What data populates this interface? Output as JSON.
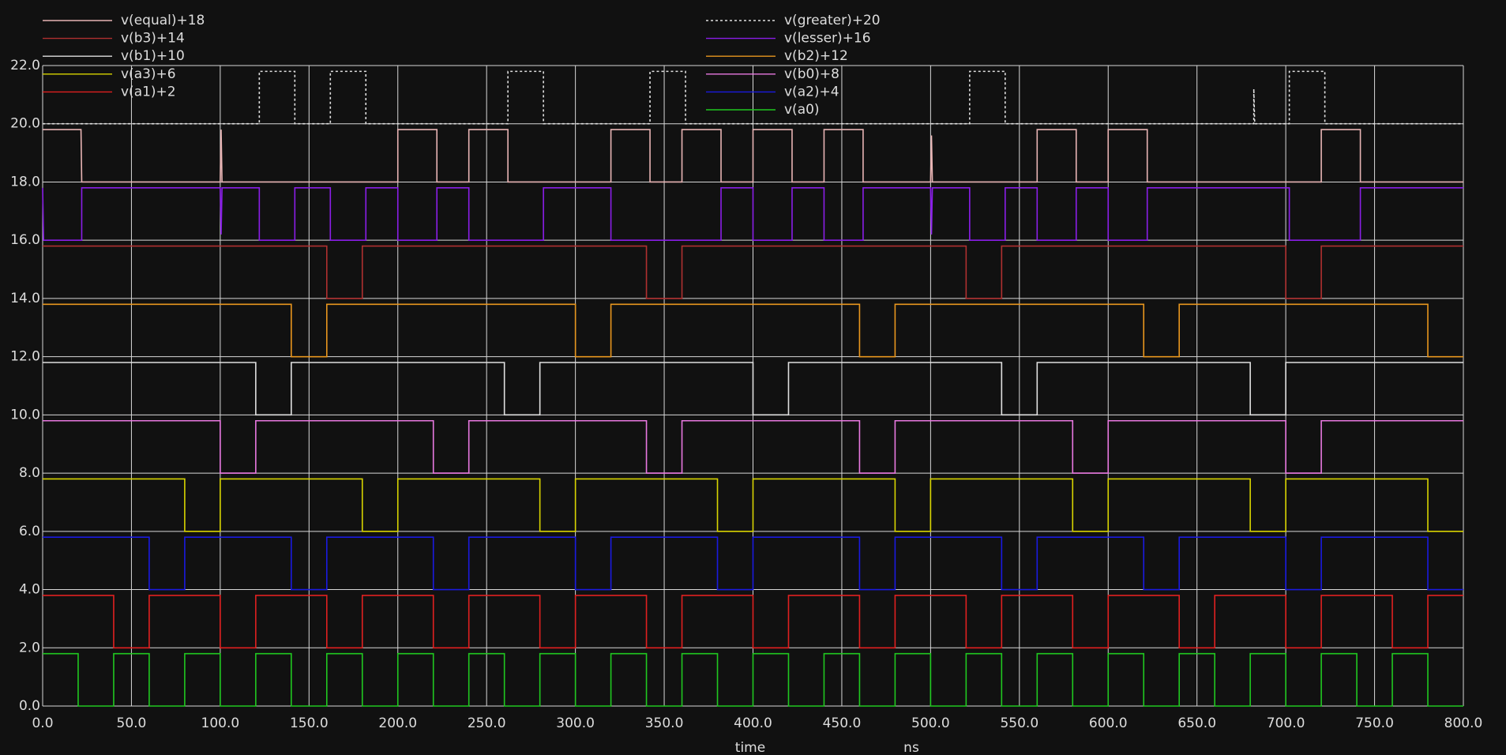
{
  "chart_data": {
    "type": "line",
    "xlabel": "time",
    "xunit": "ns",
    "grid": true,
    "xlim": [
      0,
      800
    ],
    "ylim": [
      0,
      22
    ],
    "xticks": [
      {
        "value": 0,
        "label": "0.0"
      },
      {
        "value": 50,
        "label": "50.0"
      },
      {
        "value": 100,
        "label": "100.0"
      },
      {
        "value": 150,
        "label": "150.0"
      },
      {
        "value": 200,
        "label": "200.0"
      },
      {
        "value": 250,
        "label": "250.0"
      },
      {
        "value": 300,
        "label": "300.0"
      },
      {
        "value": 350,
        "label": "350.0"
      },
      {
        "value": 400,
        "label": "400.0"
      },
      {
        "value": 450,
        "label": "450.0"
      },
      {
        "value": 500,
        "label": "500.0"
      },
      {
        "value": 550,
        "label": "550.0"
      },
      {
        "value": 600,
        "label": "600.0"
      },
      {
        "value": 650,
        "label": "650.0"
      },
      {
        "value": 700,
        "label": "700.0"
      },
      {
        "value": 750,
        "label": "750.0"
      },
      {
        "value": 800,
        "label": "800.0"
      }
    ],
    "yticks": [
      {
        "value": 0,
        "label": "0.0"
      },
      {
        "value": 2,
        "label": "2.0"
      },
      {
        "value": 4,
        "label": "4.0"
      },
      {
        "value": 6,
        "label": "6.0"
      },
      {
        "value": 8,
        "label": "8.0"
      },
      {
        "value": 10,
        "label": "10.0"
      },
      {
        "value": 12,
        "label": "12.0"
      },
      {
        "value": 14,
        "label": "14.0"
      },
      {
        "value": 16,
        "label": "16.0"
      },
      {
        "value": 18,
        "label": "18.0"
      },
      {
        "value": 20,
        "label": "20.0"
      },
      {
        "value": 22,
        "label": "22.0"
      }
    ],
    "series": [
      {
        "name": "v(equal)+18",
        "color": "#e8b4b4",
        "x": [
          0,
          21.6,
          22,
          100,
          100.5,
          101,
          200,
          200,
          222,
          222,
          240,
          240,
          262,
          262,
          320,
          320,
          342,
          342,
          360,
          360,
          382,
          382,
          400,
          400,
          422,
          422,
          440,
          440,
          462,
          462,
          500,
          500.5,
          501,
          560,
          560,
          582,
          582,
          600,
          600,
          622,
          622,
          720,
          720,
          742,
          742,
          800
        ],
        "values": [
          19.8,
          19.8,
          18,
          18,
          19.8,
          18,
          18,
          19.8,
          19.8,
          18,
          18,
          19.8,
          19.8,
          18,
          18,
          19.8,
          19.8,
          18,
          18,
          19.8,
          19.8,
          18,
          18,
          19.8,
          19.8,
          18,
          18,
          19.8,
          19.8,
          18,
          18,
          19.6,
          18,
          18,
          19.8,
          19.8,
          18,
          18,
          19.8,
          19.8,
          18,
          18,
          19.8,
          19.8,
          18,
          18
        ]
      },
      {
        "name": "v(greater)+20",
        "color": "#e0e0e0",
        "linestyle": "dashed",
        "x": [
          0,
          122,
          122,
          142,
          142,
          162,
          162,
          182,
          182,
          262,
          262,
          282,
          282,
          342,
          342,
          362,
          362,
          522,
          522,
          542,
          542,
          682,
          682,
          682.5,
          702,
          702,
          722,
          722,
          800
        ],
        "values": [
          20,
          20,
          21.8,
          21.8,
          20,
          20,
          21.8,
          21.8,
          20,
          20,
          21.8,
          21.8,
          20,
          20,
          21.8,
          21.8,
          20,
          20,
          21.8,
          21.8,
          20,
          20,
          21.2,
          20,
          20,
          21.8,
          21.8,
          20,
          20
        ]
      },
      {
        "name": "v(b3)+14",
        "color": "#b03030",
        "x": [
          0,
          160,
          160,
          180,
          180,
          340,
          340,
          360,
          360,
          520,
          520,
          540,
          540,
          700,
          700,
          720,
          720,
          800
        ],
        "values": [
          15.8,
          15.8,
          14,
          14,
          15.8,
          15.8,
          14,
          14,
          15.8,
          15.8,
          14,
          14,
          15.8,
          15.8,
          14,
          14,
          15.8,
          15.8
        ]
      },
      {
        "name": "v(lesser)+16",
        "color": "#8a1ee8",
        "x": [
          0,
          0.5,
          22,
          22,
          100,
          100.5,
          101,
          122,
          122,
          142,
          142,
          162,
          162,
          182,
          182,
          200,
          200,
          222,
          222,
          240,
          240,
          282,
          282,
          320,
          320,
          382,
          382,
          400,
          400,
          422,
          422,
          440,
          440,
          462,
          462,
          500,
          500.5,
          501,
          522,
          522,
          542,
          542,
          560,
          560,
          582,
          582,
          600,
          600,
          622,
          622,
          702,
          702,
          742,
          742,
          800
        ],
        "values": [
          17.8,
          16,
          16,
          17.8,
          17.8,
          16.2,
          17.8,
          17.8,
          16,
          16,
          17.8,
          17.8,
          16,
          16,
          17.8,
          17.8,
          16,
          16,
          17.8,
          17.8,
          16,
          16,
          17.8,
          17.8,
          16,
          16,
          17.8,
          17.8,
          16,
          16,
          17.8,
          17.8,
          16,
          16,
          17.8,
          17.8,
          16.2,
          17.8,
          17.8,
          16,
          16,
          17.8,
          17.8,
          16,
          16,
          17.8,
          17.8,
          16,
          16,
          17.8,
          17.8,
          16,
          16,
          17.8,
          17.8
        ]
      },
      {
        "name": "v(b1)+10",
        "color": "#e0e0e0",
        "x": [
          0,
          120,
          120,
          140,
          140,
          260,
          260,
          280,
          280,
          400,
          400,
          420,
          420,
          540,
          540,
          560,
          560,
          680,
          680,
          700,
          700,
          800
        ],
        "values": [
          11.8,
          11.8,
          10,
          10,
          11.8,
          11.8,
          10,
          10,
          11.8,
          11.8,
          10,
          10,
          11.8,
          11.8,
          10,
          10,
          11.8,
          11.8,
          10,
          10,
          11.8,
          11.8
        ]
      },
      {
        "name": "v(b2)+12",
        "color": "#e8961e",
        "x": [
          0,
          140,
          140,
          160,
          160,
          300,
          300,
          320,
          320,
          460,
          460,
          480,
          480,
          620,
          620,
          640,
          640,
          780,
          780,
          800
        ],
        "values": [
          13.8,
          13.8,
          12,
          12,
          13.8,
          13.8,
          12,
          12,
          13.8,
          13.8,
          12,
          12,
          13.8,
          13.8,
          12,
          12,
          13.8,
          13.8,
          12,
          12
        ]
      },
      {
        "name": "v(a3)+6",
        "color": "#d8d400",
        "x": [
          0,
          80,
          80,
          100,
          100,
          180,
          180,
          200,
          200,
          280,
          280,
          300,
          300,
          380,
          380,
          400,
          400,
          480,
          480,
          500,
          500,
          580,
          580,
          600,
          600,
          680,
          680,
          700,
          700,
          780,
          780,
          800
        ],
        "values": [
          7.8,
          7.8,
          6,
          6,
          7.8,
          7.8,
          6,
          6,
          7.8,
          7.8,
          6,
          6,
          7.8,
          7.8,
          6,
          6,
          7.8,
          7.8,
          6,
          6,
          7.8,
          7.8,
          6,
          6,
          7.8,
          7.8,
          6,
          6,
          7.8,
          7.8,
          6,
          6
        ]
      },
      {
        "name": "v(b0)+8",
        "color": "#e878e0",
        "x": [
          0,
          100,
          100,
          120,
          120,
          220,
          220,
          240,
          240,
          340,
          340,
          360,
          360,
          460,
          460,
          480,
          480,
          580,
          580,
          600,
          600,
          700,
          700,
          720,
          720,
          800
        ],
        "values": [
          9.8,
          9.8,
          8,
          8,
          9.8,
          9.8,
          8,
          8,
          9.8,
          9.8,
          8,
          8,
          9.8,
          9.8,
          8,
          8,
          9.8,
          9.8,
          8,
          8,
          9.8,
          9.8,
          8,
          8,
          9.8,
          9.8
        ]
      },
      {
        "name": "v(a1)+2",
        "color": "#e02020",
        "x": [
          0,
          40,
          40,
          60,
          60,
          100,
          100,
          120,
          120,
          160,
          160,
          180,
          180,
          220,
          220,
          240,
          240,
          280,
          280,
          300,
          300,
          340,
          340,
          360,
          360,
          400,
          400,
          420,
          420,
          460,
          460,
          480,
          480,
          520,
          520,
          540,
          540,
          580,
          580,
          600,
          600,
          640,
          640,
          660,
          660,
          700,
          700,
          720,
          720,
          760,
          760,
          780,
          780,
          800
        ],
        "values": [
          3.8,
          3.8,
          2,
          2,
          3.8,
          3.8,
          2,
          2,
          3.8,
          3.8,
          2,
          2,
          3.8,
          3.8,
          2,
          2,
          3.8,
          3.8,
          2,
          2,
          3.8,
          3.8,
          2,
          2,
          3.8,
          3.8,
          2,
          2,
          3.8,
          3.8,
          2,
          2,
          3.8,
          3.8,
          2,
          2,
          3.8,
          3.8,
          2,
          2,
          3.8,
          3.8,
          2,
          2,
          3.8,
          3.8,
          2,
          2,
          3.8,
          3.8,
          2,
          2,
          3.8,
          3.8
        ]
      },
      {
        "name": "v(a2)+4",
        "color": "#1a1ae0",
        "x": [
          0,
          60,
          60,
          80,
          80,
          140,
          140,
          160,
          160,
          220,
          220,
          240,
          240,
          300,
          300,
          320,
          320,
          380,
          380,
          400,
          400,
          460,
          460,
          480,
          480,
          540,
          540,
          560,
          560,
          620,
          620,
          640,
          640,
          700,
          700,
          720,
          720,
          780,
          780,
          800
        ],
        "values": [
          5.8,
          5.8,
          4,
          4,
          5.8,
          5.8,
          4,
          4,
          5.8,
          5.8,
          4,
          4,
          5.8,
          5.8,
          4,
          4,
          5.8,
          5.8,
          4,
          4,
          5.8,
          5.8,
          4,
          4,
          5.8,
          5.8,
          4,
          4,
          5.8,
          5.8,
          4,
          4,
          5.8,
          5.8,
          4,
          4,
          5.8,
          5.8,
          4,
          4
        ]
      },
      {
        "name": "v(a0)",
        "color": "#20c820",
        "x": [
          0,
          20,
          20,
          40,
          40,
          60,
          60,
          80,
          80,
          100,
          100,
          120,
          120,
          140,
          140,
          160,
          160,
          180,
          180,
          200,
          200,
          220,
          220,
          240,
          240,
          260,
          260,
          280,
          280,
          300,
          300,
          320,
          320,
          340,
          340,
          360,
          360,
          380,
          380,
          400,
          400,
          420,
          420,
          440,
          440,
          460,
          460,
          480,
          480,
          500,
          500,
          520,
          520,
          540,
          540,
          560,
          560,
          580,
          580,
          600,
          600,
          620,
          620,
          640,
          640,
          660,
          660,
          680,
          680,
          700,
          700,
          720,
          720,
          740,
          740,
          760,
          760,
          780,
          780,
          800
        ],
        "values": [
          1.8,
          1.8,
          0,
          0,
          1.8,
          1.8,
          0,
          0,
          1.8,
          1.8,
          0,
          0,
          1.8,
          1.8,
          0,
          0,
          1.8,
          1.8,
          0,
          0,
          1.8,
          1.8,
          0,
          0,
          1.8,
          1.8,
          0,
          0,
          1.8,
          1.8,
          0,
          0,
          1.8,
          1.8,
          0,
          0,
          1.8,
          1.8,
          0,
          0,
          1.8,
          1.8,
          0,
          0,
          1.8,
          1.8,
          0,
          0,
          1.8,
          1.8,
          0,
          0,
          1.8,
          1.8,
          0,
          0,
          1.8,
          1.8,
          0,
          0,
          1.8,
          1.8,
          0,
          0,
          1.8,
          1.8,
          0,
          0,
          1.8,
          1.8,
          0,
          0,
          1.8,
          1.8,
          0,
          0,
          1.8,
          1.8,
          0,
          0
        ]
      }
    ]
  }
}
